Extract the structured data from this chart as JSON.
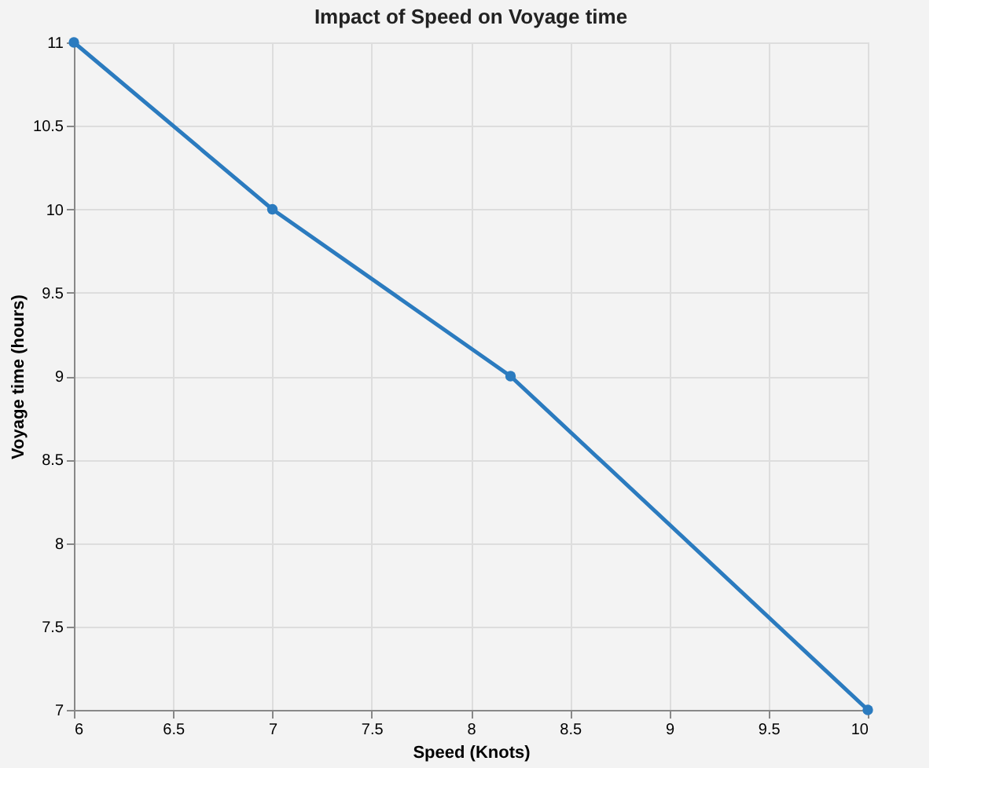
{
  "chart_data": {
    "type": "line",
    "title": "Impact of Speed on Voyage time",
    "xlabel": "Speed (Knots)",
    "ylabel": "Voyage time (hours)",
    "x": [
      6,
      7,
      8.2,
      10
    ],
    "series": [
      {
        "color": "#2b7bbf",
        "values": [
          11,
          10,
          9,
          7
        ]
      }
    ],
    "xlim": [
      6,
      10
    ],
    "xticks": [
      6,
      6.5,
      7,
      7.5,
      8,
      8.5,
      9,
      9.5,
      10
    ],
    "ylim": [
      7,
      11
    ],
    "yticks": [
      7,
      7.5,
      8,
      8.5,
      9,
      9.5,
      10,
      10.5,
      11
    ],
    "grid": true,
    "marker": "circle",
    "line_style": "solid"
  }
}
